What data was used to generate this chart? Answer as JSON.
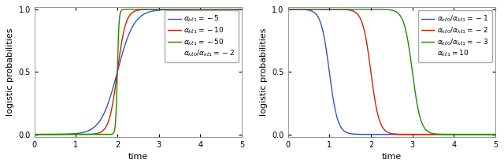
{
  "xlim": [
    0,
    5
  ],
  "ylim": [
    -0.02,
    1.02
  ],
  "xticks": [
    0,
    1,
    2,
    3,
    4,
    5
  ],
  "yticks": [
    0,
    0.5,
    1
  ],
  "xlabel": "time",
  "ylabel": "logistic probabilities",
  "left_legend_labels": [
    "$\\alpha_{k\\ell 1} = -5$",
    "$\\alpha_{k\\ell 1} = -10$",
    "$\\alpha_{k\\ell 1} = -50$",
    "$\\alpha_{k\\ell 0}/\\alpha_{k\\ell 1} = -2$"
  ],
  "left_series": [
    {
      "alpha_kt1": -5,
      "ratio": -2,
      "color": "#3355bb"
    },
    {
      "alpha_kt1": -10,
      "ratio": -2,
      "color": "#cc2200"
    },
    {
      "alpha_kt1": -50,
      "ratio": -2,
      "color": "#228800"
    }
  ],
  "right_legend_labels": [
    "$\\alpha_{k\\ell 0}/\\alpha_{k\\ell 1} = -1$",
    "$\\alpha_{k\\ell 0}/\\alpha_{k\\ell 1} = -2$",
    "$\\alpha_{k\\ell 0}/\\alpha_{k\\ell 1} = -3$",
    "$\\alpha_{k\\ell 1} = 10$"
  ],
  "right_series": [
    {
      "alpha_kt1": 10,
      "ratio": -1,
      "color": "#3355bb"
    },
    {
      "alpha_kt1": 10,
      "ratio": -2,
      "color": "#cc2200"
    },
    {
      "alpha_kt1": 10,
      "ratio": -3,
      "color": "#228800"
    }
  ],
  "legend_fontsize": 6.5,
  "axis_fontsize": 8,
  "tick_fontsize": 7,
  "linewidth": 1.0,
  "figure_facecolor": "#ffffff",
  "axes_facecolor": "#ffffff"
}
